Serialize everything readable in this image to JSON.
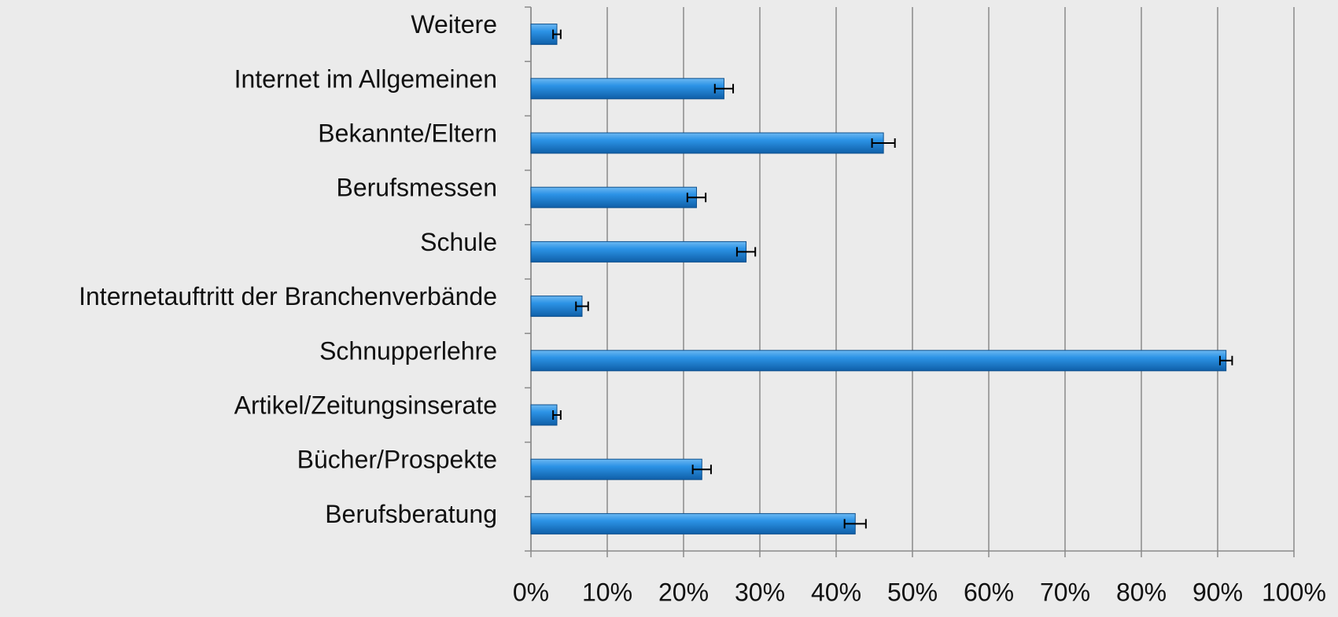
{
  "chart_data": {
    "type": "bar",
    "orientation": "horizontal",
    "categories": [
      "Weitere",
      "Internet im Allgemeinen",
      "Bekannte/Eltern",
      "Berufsmessen",
      "Schule",
      "Internetauftritt der Branchenverbände",
      "Schnupperlehre",
      "Artikel/Zeitungsinserate",
      "Bücher/Prospekte",
      "Berufsberatung"
    ],
    "values": [
      3.4,
      25.3,
      46.2,
      21.7,
      28.2,
      6.7,
      91.1,
      3.4,
      22.4,
      42.5
    ],
    "errors": [
      0.5,
      1.2,
      1.5,
      1.2,
      1.2,
      0.8,
      0.8,
      0.5,
      1.2,
      1.4
    ],
    "color": "#1f86dc",
    "xlim": [
      0,
      100
    ],
    "xticks": [
      {
        "value": 0,
        "label": "0%"
      },
      {
        "value": 10,
        "label": "10%"
      },
      {
        "value": 20,
        "label": "20%"
      },
      {
        "value": 30,
        "label": "30%"
      },
      {
        "value": 40,
        "label": "40%"
      },
      {
        "value": 50,
        "label": "50%"
      },
      {
        "value": 60,
        "label": "60%"
      },
      {
        "value": 70,
        "label": "70%"
      },
      {
        "value": 80,
        "label": "80%"
      },
      {
        "value": 90,
        "label": "90%"
      },
      {
        "value": 100,
        "label": "100%"
      }
    ],
    "grid": true
  }
}
